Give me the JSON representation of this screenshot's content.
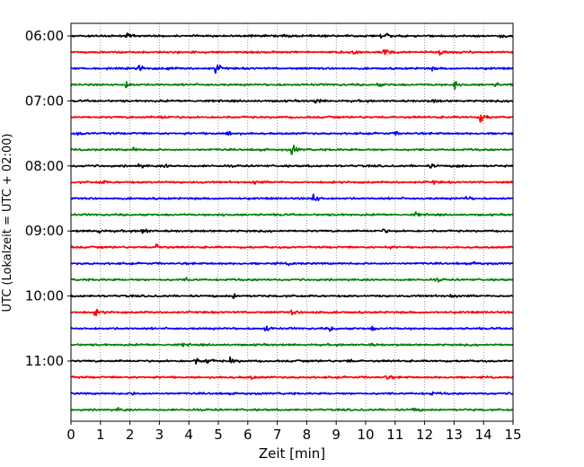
{
  "chart_data": {
    "type": "line",
    "title": "",
    "xlabel": "Zeit  [min]",
    "ylabel": "UTC (Lokalzeit = UTC + 02:00)",
    "xlim": [
      0,
      15
    ],
    "x_ticks": [
      "0",
      "1",
      "2",
      "3",
      "4",
      "5",
      "6",
      "7",
      "8",
      "9",
      "10",
      "11",
      "12",
      "13",
      "14",
      "15"
    ],
    "y_tick_labels": [
      "06:00",
      "07:00",
      "08:00",
      "09:00",
      "10:00",
      "11:00"
    ],
    "trace_interval_min": 15,
    "grid": "vertical dotted at each minute",
    "color_cycle": [
      "#000000",
      "#ff0000",
      "#0000ff",
      "#008000"
    ],
    "series": [
      {
        "start": "06:00",
        "events": [
          {
            "t": 1.9,
            "amp": 0.25
          },
          {
            "t": 7.2,
            "amp": 0.3
          },
          {
            "t": 10.5,
            "amp": 0.35
          },
          {
            "t": 10.6,
            "amp": 0.3
          },
          {
            "t": 14.6,
            "amp": 0.25
          }
        ]
      },
      {
        "start": "06:15",
        "events": [
          {
            "t": 4.1,
            "amp": 0.2
          },
          {
            "t": 9.6,
            "amp": 0.55
          },
          {
            "t": 10.6,
            "amp": 0.8
          },
          {
            "t": 12.5,
            "amp": 0.45
          }
        ]
      },
      {
        "start": "06:30",
        "events": [
          {
            "t": 2.3,
            "amp": 0.55
          },
          {
            "t": 3.3,
            "amp": 0.25
          },
          {
            "t": 4.9,
            "amp": 0.7
          },
          {
            "t": 12.2,
            "amp": 0.2
          }
        ]
      },
      {
        "start": "06:45",
        "events": [
          {
            "t": 1.8,
            "amp": 0.7
          },
          {
            "t": 10.4,
            "amp": 0.2
          },
          {
            "t": 13.0,
            "amp": 0.7
          },
          {
            "t": 14.4,
            "amp": 0.2
          }
        ]
      },
      {
        "start": "07:00",
        "events": [
          {
            "t": 8.3,
            "amp": 0.35
          },
          {
            "t": 12.3,
            "amp": 0.25
          }
        ]
      },
      {
        "start": "07:15",
        "events": [
          {
            "t": 3.1,
            "amp": 0.3
          },
          {
            "t": 13.9,
            "amp": 0.8
          }
        ]
      },
      {
        "start": "07:30",
        "events": [
          {
            "t": 0.2,
            "amp": 0.2
          },
          {
            "t": 5.3,
            "amp": 0.45
          },
          {
            "t": 11.0,
            "amp": 0.2
          }
        ]
      },
      {
        "start": "07:45",
        "events": [
          {
            "t": 2.1,
            "amp": 0.25
          },
          {
            "t": 7.5,
            "amp": 0.7
          }
        ]
      },
      {
        "start": "08:00",
        "events": [
          {
            "t": 2.3,
            "amp": 0.3
          },
          {
            "t": 3.2,
            "amp": 0.25
          },
          {
            "t": 12.2,
            "amp": 0.3
          },
          {
            "t": 13.1,
            "amp": 0.25
          }
        ]
      },
      {
        "start": "08:15",
        "events": [
          {
            "t": 1.0,
            "amp": 0.25
          },
          {
            "t": 6.2,
            "amp": 0.25
          },
          {
            "t": 12.3,
            "amp": 0.2
          }
        ]
      },
      {
        "start": "08:30",
        "events": [
          {
            "t": 8.2,
            "amp": 0.9
          },
          {
            "t": 13.4,
            "amp": 0.3
          }
        ]
      },
      {
        "start": "08:45",
        "events": [
          {
            "t": 5.1,
            "amp": 0.25
          },
          {
            "t": 11.7,
            "amp": 0.25
          }
        ]
      },
      {
        "start": "09:00",
        "events": [
          {
            "t": 0.9,
            "amp": 0.3
          },
          {
            "t": 2.4,
            "amp": 0.6
          },
          {
            "t": 10.6,
            "amp": 0.25
          }
        ]
      },
      {
        "start": "09:15",
        "events": [
          {
            "t": 2.9,
            "amp": 0.4
          },
          {
            "t": 10.7,
            "amp": 0.2
          }
        ]
      },
      {
        "start": "09:30",
        "events": [
          {
            "t": 7.4,
            "amp": 0.15
          },
          {
            "t": 13.7,
            "amp": 0.25
          }
        ]
      },
      {
        "start": "09:45",
        "events": [
          {
            "t": 3.9,
            "amp": 0.2
          },
          {
            "t": 12.4,
            "amp": 0.2
          }
        ]
      },
      {
        "start": "10:00",
        "events": [
          {
            "t": 5.5,
            "amp": 0.3
          },
          {
            "t": 12.9,
            "amp": 0.2
          }
        ]
      },
      {
        "start": "10:15",
        "events": [
          {
            "t": 0.8,
            "amp": 0.4
          },
          {
            "t": 7.5,
            "amp": 0.3
          },
          {
            "t": 8.3,
            "amp": 0.2
          }
        ]
      },
      {
        "start": "10:30",
        "events": [
          {
            "t": 6.6,
            "amp": 0.45
          },
          {
            "t": 8.8,
            "amp": 0.25
          },
          {
            "t": 10.2,
            "amp": 0.25
          }
        ]
      },
      {
        "start": "10:45",
        "events": [
          {
            "t": 3.8,
            "amp": 0.2
          },
          {
            "t": 10.1,
            "amp": 0.2
          }
        ]
      },
      {
        "start": "11:00",
        "events": [
          {
            "t": 4.2,
            "amp": 0.4
          },
          {
            "t": 4.6,
            "amp": 0.5
          },
          {
            "t": 5.4,
            "amp": 0.45
          },
          {
            "t": 9.4,
            "amp": 0.2
          }
        ]
      },
      {
        "start": "11:15",
        "events": [
          {
            "t": 6.1,
            "amp": 0.2
          },
          {
            "t": 10.7,
            "amp": 0.25
          }
        ]
      },
      {
        "start": "11:30",
        "events": [
          {
            "t": 2.1,
            "amp": 0.2
          },
          {
            "t": 12.2,
            "amp": 0.2
          }
        ]
      },
      {
        "start": "11:45",
        "events": [
          {
            "t": 1.6,
            "amp": 0.25
          },
          {
            "t": 11.6,
            "amp": 0.3
          }
        ]
      }
    ]
  }
}
